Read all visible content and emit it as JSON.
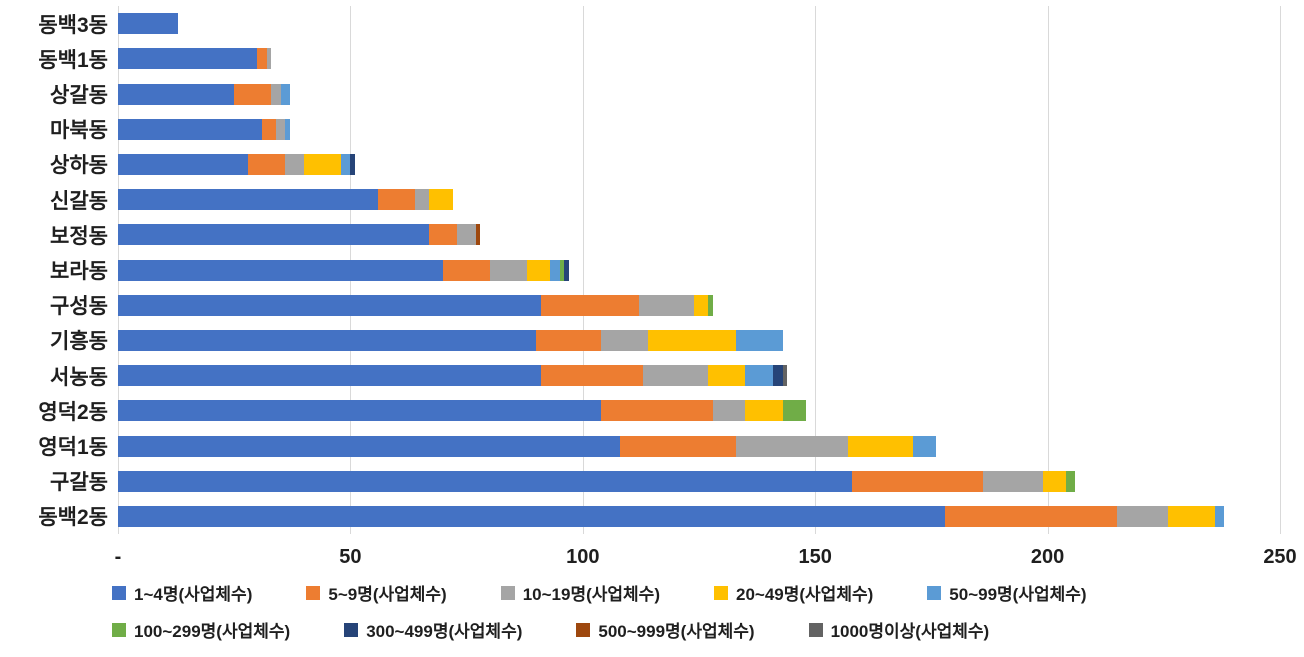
{
  "chart_data": {
    "type": "bar",
    "orientation": "horizontal",
    "stacked": true,
    "title": "",
    "xlabel": "",
    "ylabel": "",
    "xlim": [
      0,
      250
    ],
    "xticks": [
      0,
      50,
      100,
      150,
      200,
      250
    ],
    "xtick_labels": [
      "-",
      "50",
      "100",
      "150",
      "200",
      "250"
    ],
    "grid": "vertical",
    "legend_position": "bottom",
    "legend_rows": [
      5,
      4
    ],
    "categories": [
      "동백3동",
      "동백1동",
      "상갈동",
      "마북동",
      "상하동",
      "신갈동",
      "보정동",
      "보라동",
      "구성동",
      "기흥동",
      "서농동",
      "영덕2동",
      "영덕1동",
      "구갈동",
      "동백2동"
    ],
    "series": [
      {
        "name": "1~4명(사업체수)",
        "color": "#4472C4",
        "values": [
          13,
          30,
          25,
          31,
          28,
          56,
          67,
          70,
          91,
          90,
          91,
          104,
          108,
          158,
          178
        ]
      },
      {
        "name": "5~9명(사업체수)",
        "color": "#ED7D31",
        "values": [
          0,
          2,
          8,
          3,
          8,
          8,
          6,
          10,
          21,
          14,
          22,
          24,
          25,
          28,
          37
        ]
      },
      {
        "name": "10~19명(사업체수)",
        "color": "#A5A5A5",
        "values": [
          0,
          1,
          2,
          2,
          4,
          3,
          4,
          8,
          12,
          10,
          14,
          7,
          24,
          13,
          11
        ]
      },
      {
        "name": "20~49명(사업체수)",
        "color": "#FFC000",
        "values": [
          0,
          0,
          0,
          0,
          8,
          5,
          0,
          5,
          3,
          19,
          8,
          8,
          14,
          5,
          10
        ]
      },
      {
        "name": "50~99명(사업체수)",
        "color": "#5B9BD5",
        "values": [
          0,
          0,
          2,
          1,
          2,
          0,
          0,
          2,
          0,
          10,
          6,
          0,
          5,
          0,
          2
        ]
      },
      {
        "name": "100~299명(사업체수)",
        "color": "#70AD47",
        "values": [
          0,
          0,
          0,
          0,
          0,
          0,
          0,
          1,
          1,
          0,
          0,
          5,
          0,
          2,
          0
        ]
      },
      {
        "name": "300~499명(사업체수)",
        "color": "#264478",
        "values": [
          0,
          0,
          0,
          0,
          1,
          0,
          0,
          1,
          0,
          0,
          2,
          0,
          0,
          0,
          0
        ]
      },
      {
        "name": "500~999명(사업체수)",
        "color": "#9E480E",
        "values": [
          0,
          0,
          0,
          0,
          0,
          0,
          1,
          0,
          0,
          0,
          0,
          0,
          0,
          0,
          0
        ]
      },
      {
        "name": "1000명이상(사업체수)",
        "color": "#636363",
        "values": [
          0,
          0,
          0,
          0,
          0,
          0,
          0,
          0,
          0,
          0,
          1,
          0,
          0,
          0,
          0
        ]
      }
    ]
  }
}
